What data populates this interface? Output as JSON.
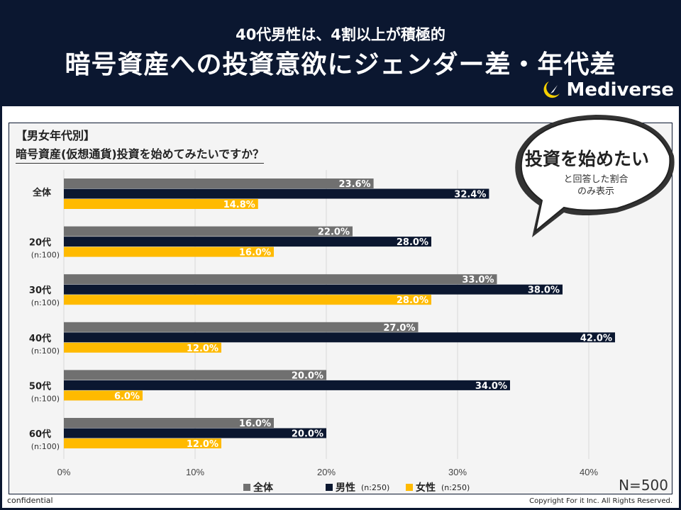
{
  "header": {
    "subtitle": "40代男性は、4割以上が積極的",
    "title": "暗号資産への投資意欲にジェンダー差・年代差",
    "logo": "Mediverse"
  },
  "question": {
    "category": "【男女年代別】",
    "text": "暗号資産(仮想通貨)投資を始めてみたいですか？"
  },
  "bubble": {
    "main": "投資を始めたい",
    "note1": "と回答した割合",
    "note2": "のみ表示"
  },
  "chart_data": {
    "type": "bar",
    "orientation": "horizontal",
    "categories": [
      {
        "label": "全体",
        "n": ""
      },
      {
        "label": "20代",
        "n": "(n:100)"
      },
      {
        "label": "30代",
        "n": "(n:100)"
      },
      {
        "label": "40代",
        "n": "(n:100)"
      },
      {
        "label": "50代",
        "n": "(n:100)"
      },
      {
        "label": "60代",
        "n": "(n:100)"
      }
    ],
    "series": [
      {
        "name": "全体",
        "n": "",
        "color": "#707070",
        "values": [
          23.6,
          22.0,
          33.0,
          27.0,
          20.0,
          16.0
        ]
      },
      {
        "name": "男性",
        "n": "(n:250)",
        "color": "#0b1730",
        "values": [
          32.4,
          28.0,
          38.0,
          42.0,
          34.0,
          20.0
        ]
      },
      {
        "name": "女性",
        "n": "(n:250)",
        "color": "#ffba00",
        "values": [
          14.8,
          16.0,
          28.0,
          12.0,
          6.0,
          12.0
        ]
      }
    ],
    "xlim": [
      0,
      40
    ],
    "xticks": [
      "0%",
      "10%",
      "20%",
      "30%",
      "40%"
    ],
    "grid": true,
    "legend": "bottom"
  },
  "footer": {
    "total": "N=500",
    "confidential": "confidential",
    "copyright": "Copyright For it Inc. All Rights Reserved."
  }
}
